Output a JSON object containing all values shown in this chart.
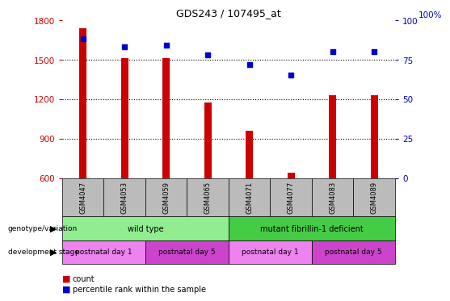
{
  "title": "GDS243 / 107495_at",
  "samples": [
    "GSM4047",
    "GSM4053",
    "GSM4059",
    "GSM4065",
    "GSM4071",
    "GSM4077",
    "GSM4083",
    "GSM4089"
  ],
  "counts": [
    1740,
    1510,
    1510,
    1175,
    960,
    640,
    1230,
    1230
  ],
  "percentiles": [
    88,
    83,
    84,
    78,
    72,
    65,
    80,
    80
  ],
  "ylim_left": [
    600,
    1800
  ],
  "ylim_right": [
    0,
    100
  ],
  "yticks_left": [
    600,
    900,
    1200,
    1500,
    1800
  ],
  "yticks_right": [
    0,
    25,
    50,
    75,
    100
  ],
  "bar_color": "#cc0000",
  "dot_color": "#0000cc",
  "genotype_groups": [
    {
      "label": "wild type",
      "start": 0,
      "end": 4,
      "color": "#90ee90"
    },
    {
      "label": "mutant fibrillin-1 deficient",
      "start": 4,
      "end": 8,
      "color": "#44cc44"
    }
  ],
  "stage_groups": [
    {
      "label": "postnatal day 1",
      "start": 0,
      "end": 2,
      "color": "#ee82ee"
    },
    {
      "label": "postnatal day 5",
      "start": 2,
      "end": 4,
      "color": "#cc44cc"
    },
    {
      "label": "postnatal day 1",
      "start": 4,
      "end": 6,
      "color": "#ee82ee"
    },
    {
      "label": "postnatal day 5",
      "start": 6,
      "end": 8,
      "color": "#cc44cc"
    }
  ],
  "left_tick_color": "#cc0000",
  "right_tick_color": "#0000cc",
  "tick_bg_color": "#bbbbbb",
  "legend_count_color": "#cc0000",
  "legend_pct_color": "#0000cc",
  "grid_lines": [
    900,
    1200,
    1500
  ],
  "right_label": "100%"
}
